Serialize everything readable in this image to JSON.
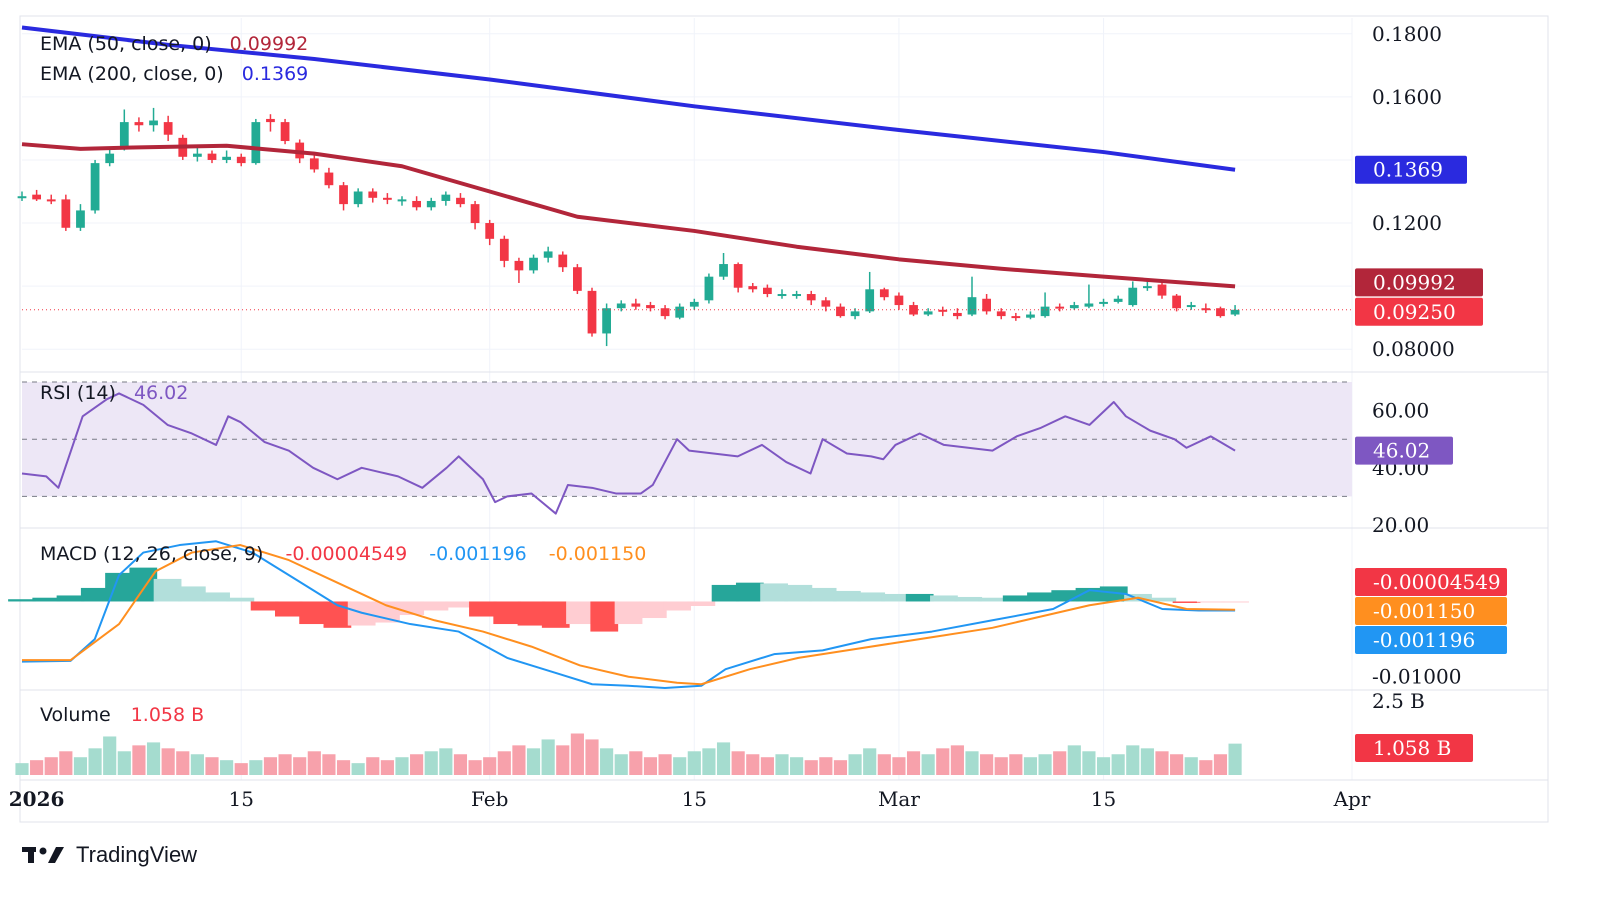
{
  "brand": {
    "name": "TradingView",
    "logo_icon": "tradingview-logo-icon"
  },
  "colors": {
    "up": "#22ab94",
    "down": "#f23645",
    "ema50": "#b2263a",
    "ema200": "#2a2adf",
    "rsi": "#7e57c2",
    "rsi_band": "#ede7f6",
    "macd": "#2196f3",
    "signal": "#ff8f1f",
    "hist_up_strong": "#26a69a",
    "hist_up_weak": "#b2dfdb",
    "hist_down_strong": "#ff5252",
    "hist_down_weak": "#ffcdd2",
    "vol_up": "#a5dccf",
    "vol_down": "#f7a1ab",
    "grid": "#f0f3fa"
  },
  "legend": {
    "ema50": {
      "label": "EMA (50, close, 0)",
      "value": "0.09992"
    },
    "ema200": {
      "label": "EMA (200, close, 0)",
      "value": "0.1369"
    },
    "rsi": {
      "label": "RSI (14)",
      "value": "46.02"
    },
    "macd": {
      "label": "MACD (12, 26, close, 9)",
      "hist": "-0.00004549",
      "macd": "-0.001196",
      "signal": "-0.001150"
    },
    "volume": {
      "label": "Volume",
      "value": "1.058 B"
    }
  },
  "axes": {
    "price_ticks": [
      "0.1800",
      "0.1600",
      "0.1200",
      "0.08000"
    ],
    "rsi_ticks": [
      "60.00",
      "40.00",
      "20.00"
    ],
    "macd_ticks": [
      "-0.01000"
    ],
    "volume_ticks": [
      "2.5 B"
    ],
    "x_ticks": [
      "2026",
      "15",
      "Feb",
      "15",
      "Mar",
      "15",
      "Apr"
    ]
  },
  "price_pills": [
    {
      "label": "0.1369",
      "color": "#2a2adf"
    },
    {
      "label": "0.09992",
      "color": "#b2263a"
    },
    {
      "label": "0.09250",
      "color": "#f23645"
    }
  ],
  "rsi_pill": {
    "label": "46.02",
    "color": "#7e57c2"
  },
  "macd_pills": [
    {
      "label": "-0.00004549",
      "color": "#f23645"
    },
    {
      "label": "-0.001150",
      "color": "#ff8f1f"
    },
    {
      "label": "-0.001196",
      "color": "#2196f3"
    }
  ],
  "volume_pill": {
    "label": "1.058 B",
    "color": "#f23645"
  },
  "chart_data": {
    "type": "candlestick",
    "x_range": [
      "2025-12-31",
      "2026-04-01"
    ],
    "price_range": [
      0.075,
      0.185
    ],
    "dates": [
      "2025-12-31",
      "2026-01-01",
      "2026-01-02",
      "2026-01-03",
      "2026-01-04",
      "2026-01-05",
      "2026-01-06",
      "2026-01-07",
      "2026-01-08",
      "2026-01-09",
      "2026-01-10",
      "2026-01-11",
      "2026-01-12",
      "2026-01-13",
      "2026-01-14",
      "2026-01-15",
      "2026-01-16",
      "2026-01-17",
      "2026-01-18",
      "2026-01-19",
      "2026-01-20",
      "2026-01-21",
      "2026-01-22",
      "2026-01-23",
      "2026-01-24",
      "2026-01-25",
      "2026-01-26",
      "2026-01-27",
      "2026-01-28",
      "2026-01-29",
      "2026-01-30",
      "2026-01-31",
      "2026-02-01",
      "2026-02-02",
      "2026-02-03",
      "2026-02-04",
      "2026-02-05",
      "2026-02-06",
      "2026-02-07",
      "2026-02-08",
      "2026-02-09",
      "2026-02-10",
      "2026-02-11",
      "2026-02-12",
      "2026-02-13",
      "2026-02-14",
      "2026-02-15",
      "2026-02-16",
      "2026-02-17",
      "2026-02-18",
      "2026-02-19",
      "2026-02-20",
      "2026-02-21",
      "2026-02-22",
      "2026-02-23",
      "2026-02-24",
      "2026-02-25",
      "2026-02-26",
      "2026-02-27",
      "2026-02-28",
      "2026-03-01",
      "2026-03-02",
      "2026-03-03",
      "2026-03-04",
      "2026-03-05",
      "2026-03-06",
      "2026-03-07",
      "2026-03-08",
      "2026-03-09",
      "2026-03-10",
      "2026-03-11",
      "2026-03-12",
      "2026-03-13",
      "2026-03-14",
      "2026-03-15",
      "2026-03-16",
      "2026-03-17",
      "2026-03-18",
      "2026-03-19",
      "2026-03-20",
      "2026-03-21",
      "2026-03-22",
      "2026-03-23",
      "2026-03-24"
    ],
    "open": [
      0.128,
      0.129,
      0.1275,
      0.1275,
      0.1185,
      0.124,
      0.139,
      0.144,
      0.152,
      0.151,
      0.152,
      0.147,
      0.141,
      0.142,
      0.14,
      0.141,
      0.139,
      0.153,
      0.152,
      0.1455,
      0.1405,
      0.136,
      0.132,
      0.126,
      0.13,
      0.128,
      0.1275,
      0.127,
      0.125,
      0.127,
      0.128,
      0.126,
      0.12,
      0.115,
      0.108,
      0.105,
      0.109,
      0.11,
      0.106,
      0.0985,
      0.085,
      0.093,
      0.0945,
      0.094,
      0.093,
      0.09,
      0.0935,
      0.0955,
      0.103,
      0.107,
      0.1,
      0.0995,
      0.0975,
      0.0975,
      0.0975,
      0.0955,
      0.0935,
      0.0905,
      0.092,
      0.099,
      0.097,
      0.094,
      0.091,
      0.0925,
      0.0915,
      0.091,
      0.096,
      0.092,
      0.0905,
      0.09,
      0.0905,
      0.0935,
      0.093,
      0.0935,
      0.0945,
      0.095,
      0.094,
      0.0995,
      0.1005,
      0.097,
      0.0935,
      0.093,
      0.093,
      0.091
    ],
    "close": [
      0.1285,
      0.1275,
      0.127,
      0.1185,
      0.124,
      0.139,
      0.142,
      0.152,
      0.151,
      0.1525,
      0.148,
      0.141,
      0.142,
      0.14,
      0.141,
      0.139,
      0.152,
      0.152,
      0.146,
      0.1405,
      0.137,
      0.132,
      0.126,
      0.13,
      0.128,
      0.1275,
      0.1275,
      0.125,
      0.127,
      0.129,
      0.126,
      0.12,
      0.115,
      0.108,
      0.105,
      0.109,
      0.111,
      0.106,
      0.0985,
      0.085,
      0.093,
      0.0945,
      0.0935,
      0.093,
      0.0905,
      0.0935,
      0.095,
      0.103,
      0.107,
      0.0995,
      0.099,
      0.0975,
      0.0975,
      0.0975,
      0.0955,
      0.0935,
      0.0905,
      0.092,
      0.099,
      0.0965,
      0.094,
      0.091,
      0.092,
      0.092,
      0.0905,
      0.0965,
      0.092,
      0.0905,
      0.09,
      0.091,
      0.0935,
      0.093,
      0.094,
      0.0945,
      0.095,
      0.096,
      0.0995,
      0.1,
      0.097,
      0.093,
      0.094,
      0.0925,
      0.0905,
      0.0925
    ],
    "high": [
      0.13,
      0.1305,
      0.129,
      0.129,
      0.126,
      0.14,
      0.144,
      0.156,
      0.1535,
      0.1565,
      0.154,
      0.148,
      0.144,
      0.143,
      0.143,
      0.142,
      0.153,
      0.1545,
      0.153,
      0.1465,
      0.142,
      0.1375,
      0.133,
      0.131,
      0.131,
      0.1295,
      0.1285,
      0.1285,
      0.128,
      0.13,
      0.1295,
      0.127,
      0.121,
      0.116,
      0.109,
      0.11,
      0.1125,
      0.111,
      0.107,
      0.0995,
      0.0945,
      0.0955,
      0.096,
      0.095,
      0.094,
      0.0945,
      0.096,
      0.104,
      0.1105,
      0.1075,
      0.101,
      0.1005,
      0.099,
      0.0985,
      0.0985,
      0.0965,
      0.0945,
      0.093,
      0.1045,
      0.0995,
      0.098,
      0.095,
      0.093,
      0.0935,
      0.093,
      0.103,
      0.0975,
      0.093,
      0.0915,
      0.092,
      0.098,
      0.0945,
      0.095,
      0.1005,
      0.096,
      0.097,
      0.1015,
      0.102,
      0.101,
      0.0975,
      0.095,
      0.0945,
      0.0935,
      0.094
    ],
    "low": [
      0.127,
      0.127,
      0.126,
      0.1175,
      0.1175,
      0.123,
      0.138,
      0.143,
      0.149,
      0.149,
      0.146,
      0.14,
      0.1395,
      0.139,
      0.139,
      0.138,
      0.1385,
      0.149,
      0.145,
      0.139,
      0.136,
      0.131,
      0.124,
      0.125,
      0.1265,
      0.126,
      0.1255,
      0.124,
      0.124,
      0.1255,
      0.125,
      0.118,
      0.113,
      0.106,
      0.101,
      0.104,
      0.1075,
      0.1045,
      0.0975,
      0.084,
      0.081,
      0.092,
      0.0925,
      0.092,
      0.0895,
      0.0895,
      0.0925,
      0.0945,
      0.102,
      0.098,
      0.098,
      0.0965,
      0.096,
      0.096,
      0.094,
      0.092,
      0.09,
      0.0895,
      0.0915,
      0.0955,
      0.0925,
      0.0905,
      0.0905,
      0.0905,
      0.0895,
      0.0905,
      0.091,
      0.0895,
      0.089,
      0.0895,
      0.09,
      0.092,
      0.0925,
      0.093,
      0.0935,
      0.0945,
      0.0935,
      0.0985,
      0.096,
      0.092,
      0.0925,
      0.0915,
      0.09,
      0.0905
    ],
    "volume": [
      0.4,
      0.5,
      0.6,
      0.8,
      0.6,
      0.9,
      1.3,
      0.8,
      1.0,
      1.1,
      0.9,
      0.8,
      0.7,
      0.6,
      0.5,
      0.4,
      0.5,
      0.6,
      0.7,
      0.6,
      0.8,
      0.7,
      0.5,
      0.4,
      0.6,
      0.5,
      0.6,
      0.7,
      0.8,
      0.9,
      0.7,
      0.5,
      0.6,
      0.8,
      1.0,
      0.9,
      1.2,
      1.0,
      1.4,
      1.2,
      0.9,
      0.7,
      0.8,
      0.6,
      0.7,
      0.6,
      0.8,
      0.9,
      1.1,
      0.8,
      0.7,
      0.6,
      0.7,
      0.6,
      0.5,
      0.6,
      0.5,
      0.7,
      0.9,
      0.7,
      0.6,
      0.8,
      0.7,
      0.9,
      1.0,
      0.8,
      0.7,
      0.6,
      0.7,
      0.6,
      0.7,
      0.8,
      1.0,
      0.8,
      0.6,
      0.7,
      1.0,
      0.9,
      0.8,
      0.7,
      0.6,
      0.5,
      0.7,
      1.058
    ],
    "ema50": [
      [
        "2025-12-31",
        0.145
      ],
      [
        "2026-01-04",
        0.1435
      ],
      [
        "2026-01-08",
        0.144
      ],
      [
        "2026-01-14",
        0.1445
      ],
      [
        "2026-01-20",
        0.142
      ],
      [
        "2026-01-26",
        0.138
      ],
      [
        "2026-02-01",
        0.13
      ],
      [
        "2026-02-07",
        0.122
      ],
      [
        "2026-02-15",
        0.1175
      ],
      [
        "2026-02-22",
        0.1125
      ],
      [
        "2026-03-01",
        0.1085
      ],
      [
        "2026-03-08",
        0.1055
      ],
      [
        "2026-03-15",
        0.103
      ],
      [
        "2026-03-24",
        0.09992
      ]
    ],
    "ema200": [
      [
        "2025-12-31",
        0.182
      ],
      [
        "2026-01-10",
        0.1765
      ],
      [
        "2026-01-20",
        0.172
      ],
      [
        "2026-02-01",
        0.1655
      ],
      [
        "2026-02-15",
        0.157
      ],
      [
        "2026-03-01",
        0.1495
      ],
      [
        "2026-03-15",
        0.1425
      ],
      [
        "2026-03-24",
        0.1369
      ]
    ],
    "rsi": {
      "range": [
        20,
        70
      ],
      "band": [
        30,
        70
      ],
      "levels": [
        30,
        50,
        70
      ],
      "values": [
        [
          0,
          38
        ],
        [
          2,
          37
        ],
        [
          3,
          33
        ],
        [
          5,
          58
        ],
        [
          7,
          64
        ],
        [
          8,
          66
        ],
        [
          10,
          62
        ],
        [
          12,
          55
        ],
        [
          14,
          52
        ],
        [
          16,
          48
        ],
        [
          17,
          58
        ],
        [
          18,
          56
        ],
        [
          20,
          49
        ],
        [
          22,
          46
        ],
        [
          24,
          40
        ],
        [
          26,
          36
        ],
        [
          28,
          40
        ],
        [
          30,
          38
        ],
        [
          31,
          37
        ],
        [
          33,
          33
        ],
        [
          35,
          40
        ],
        [
          36,
          44
        ],
        [
          38,
          36
        ],
        [
          39,
          28
        ],
        [
          40,
          30
        ],
        [
          42,
          31
        ],
        [
          44,
          24
        ],
        [
          45,
          34
        ],
        [
          47,
          33
        ],
        [
          49,
          31
        ],
        [
          51,
          31
        ],
        [
          52,
          34
        ],
        [
          53,
          42
        ],
        [
          54,
          50
        ],
        [
          55,
          46
        ],
        [
          57,
          45
        ],
        [
          59,
          44
        ],
        [
          61,
          48
        ],
        [
          63,
          42
        ],
        [
          65,
          38
        ],
        [
          66,
          50
        ],
        [
          68,
          45
        ],
        [
          70,
          44
        ],
        [
          71,
          43
        ],
        [
          72,
          48
        ],
        [
          74,
          52
        ],
        [
          76,
          48
        ],
        [
          78,
          47
        ],
        [
          80,
          46
        ],
        [
          82,
          51
        ],
        [
          84,
          54
        ],
        [
          86,
          58
        ],
        [
          88,
          55
        ],
        [
          90,
          63
        ],
        [
          91,
          58
        ],
        [
          93,
          53
        ],
        [
          95,
          50
        ],
        [
          96,
          47
        ],
        [
          98,
          51
        ],
        [
          100,
          46.02
        ]
      ]
    },
    "macd": {
      "range": [
        -0.0115,
        0.0095
      ],
      "line": [
        [
          0,
          -0.008
        ],
        [
          4,
          -0.0079
        ],
        [
          6,
          -0.005
        ],
        [
          8,
          0.0035
        ],
        [
          10,
          0.0065
        ],
        [
          13,
          0.0075
        ],
        [
          16,
          0.008
        ],
        [
          19,
          0.0065
        ],
        [
          22,
          0.0035
        ],
        [
          26,
          -0.0005
        ],
        [
          28,
          -0.0015
        ],
        [
          32,
          -0.003
        ],
        [
          36,
          -0.004
        ],
        [
          40,
          -0.0075
        ],
        [
          44,
          -0.0095
        ],
        [
          47,
          -0.011
        ],
        [
          50,
          -0.0112
        ],
        [
          53,
          -0.0115
        ],
        [
          56,
          -0.0112
        ],
        [
          58,
          -0.009
        ],
        [
          62,
          -0.007
        ],
        [
          66,
          -0.0065
        ],
        [
          70,
          -0.005
        ],
        [
          75,
          -0.004
        ],
        [
          80,
          -0.0025
        ],
        [
          85,
          -0.001
        ],
        [
          88,
          0.0015
        ],
        [
          91,
          0.001
        ],
        [
          94,
          -0.001
        ],
        [
          97,
          -0.0012
        ],
        [
          100,
          -0.0012
        ]
      ],
      "signal": [
        [
          0,
          -0.0078
        ],
        [
          4,
          -0.0078
        ],
        [
          8,
          -0.003
        ],
        [
          11,
          0.004
        ],
        [
          14,
          0.0065
        ],
        [
          18,
          0.0075
        ],
        [
          22,
          0.0055
        ],
        [
          26,
          0.0025
        ],
        [
          30,
          -0.0005
        ],
        [
          34,
          -0.0025
        ],
        [
          38,
          -0.004
        ],
        [
          42,
          -0.006
        ],
        [
          46,
          -0.0085
        ],
        [
          50,
          -0.01
        ],
        [
          54,
          -0.0108
        ],
        [
          56,
          -0.011
        ],
        [
          60,
          -0.009
        ],
        [
          64,
          -0.0075
        ],
        [
          68,
          -0.0065
        ],
        [
          72,
          -0.0055
        ],
        [
          76,
          -0.0045
        ],
        [
          80,
          -0.0035
        ],
        [
          84,
          -0.002
        ],
        [
          88,
          -0.0005
        ],
        [
          92,
          0.0005
        ],
        [
          96,
          -0.001
        ],
        [
          100,
          -0.0011
        ]
      ],
      "hist": [
        [
          0,
          0.0003
        ],
        [
          2,
          0.0005
        ],
        [
          4,
          0.0008
        ],
        [
          6,
          0.0018
        ],
        [
          8,
          0.0038
        ],
        [
          10,
          0.0045
        ],
        [
          12,
          0.003
        ],
        [
          14,
          0.002
        ],
        [
          16,
          0.0012
        ],
        [
          18,
          0.0005
        ],
        [
          20,
          -0.0012
        ],
        [
          22,
          -0.002
        ],
        [
          24,
          -0.003
        ],
        [
          26,
          -0.0035
        ],
        [
          28,
          -0.0032
        ],
        [
          30,
          -0.0028
        ],
        [
          32,
          -0.0018
        ],
        [
          34,
          -0.0012
        ],
        [
          36,
          -0.0008
        ],
        [
          38,
          -0.002
        ],
        [
          40,
          -0.003
        ],
        [
          42,
          -0.0032
        ],
        [
          44,
          -0.0035
        ],
        [
          46,
          -0.003
        ],
        [
          48,
          -0.004
        ],
        [
          50,
          -0.003
        ],
        [
          52,
          -0.0022
        ],
        [
          54,
          -0.0012
        ],
        [
          56,
          -0.0006
        ],
        [
          58,
          0.0022
        ],
        [
          60,
          0.0025
        ],
        [
          62,
          0.0024
        ],
        [
          64,
          0.0022
        ],
        [
          66,
          0.0018
        ],
        [
          68,
          0.0014
        ],
        [
          70,
          0.0012
        ],
        [
          72,
          0.001
        ],
        [
          74,
          0.001
        ],
        [
          76,
          0.0008
        ],
        [
          78,
          0.0006
        ],
        [
          80,
          0.0005
        ],
        [
          82,
          0.0008
        ],
        [
          84,
          0.0012
        ],
        [
          86,
          0.0015
        ],
        [
          88,
          0.0018
        ],
        [
          90,
          0.002
        ],
        [
          92,
          0.001
        ],
        [
          94,
          0.0005
        ],
        [
          96,
          -0.0002
        ],
        [
          98,
          -0.0001
        ],
        [
          100,
          -4.549e-05
        ]
      ]
    },
    "volume_ylim": [
      0,
      2.8
    ]
  }
}
